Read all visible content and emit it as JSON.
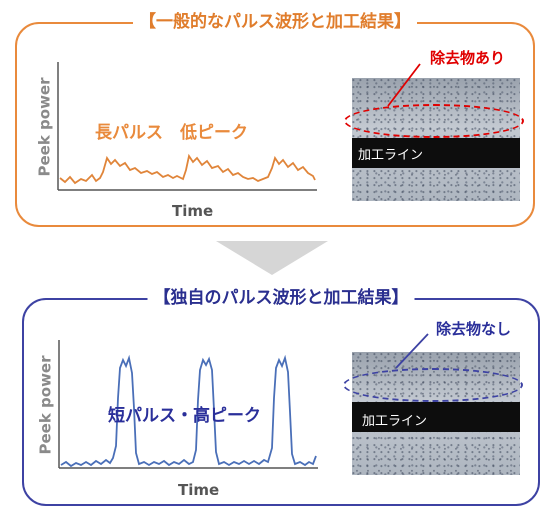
{
  "top_panel": {
    "title": "【一般的なパルス波形と加工結果】",
    "accent_color": "#e98a3c",
    "ylabel": "Peek power",
    "xlabel": "Time",
    "caption": "長パルス　低ピーク",
    "photo": {
      "line_label": "加工ライン",
      "callout": "除去物あり",
      "callout_color": "#e00000"
    }
  },
  "arrow": {
    "direction": "down",
    "color": "#d6d6d6"
  },
  "bottom_panel": {
    "title": "【独自のパルス波形と加工結果】",
    "accent_color": "#3d42a3",
    "ylabel": "Peek power",
    "xlabel": "Time",
    "caption": "短パルス・高ピーク",
    "photo": {
      "line_label": "加工ライン",
      "callout": "除去物なし",
      "callout_color": "#2a2f9a"
    }
  }
}
